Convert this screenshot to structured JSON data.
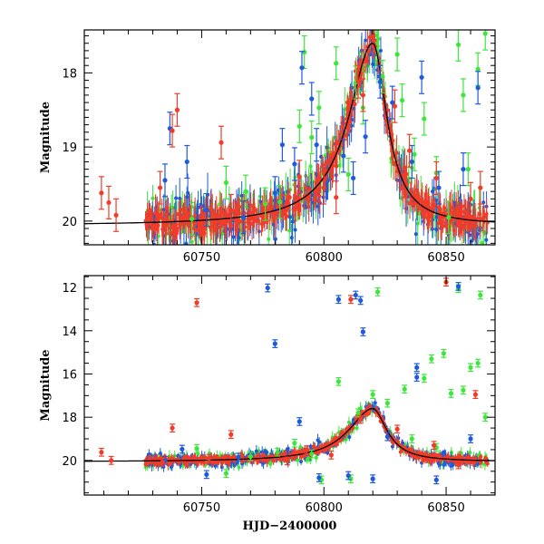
{
  "chart_data": [
    {
      "type": "scatter",
      "title": "",
      "xlabel": "",
      "ylabel": "Magnitude",
      "xlim": [
        60702,
        60870
      ],
      "ylim": [
        20.32,
        17.42
      ],
      "y_inverted": true,
      "x_ticks": [
        60750,
        60800,
        60850
      ],
      "y_ticks": [
        18,
        19,
        20
      ],
      "grid": false,
      "model_curve": {
        "color": "#000000",
        "peak_x": 60820,
        "peak_y": 17.6,
        "baseline_y": 20.06,
        "rise_width": 12,
        "decay_width": 7
      },
      "series": [
        {
          "color": "#f03c28",
          "points": [
            [
              60709,
              19.62
            ],
            [
              60712,
              19.75
            ],
            [
              60715,
              19.92
            ],
            [
              60733,
              19.55
            ],
            [
              60738,
              18.78
            ],
            [
              60740,
              18.5
            ],
            [
              60758,
              18.94
            ],
            [
              60762,
              19.86
            ],
            [
              60790,
              19.4
            ],
            [
              60800,
              19.55
            ],
            [
              60805,
              19.68
            ],
            [
              60814,
              18.12
            ],
            [
              60816,
              18.3
            ],
            [
              60829,
              18.45
            ],
            [
              60835,
              19.05
            ],
            [
              60846,
              19.42
            ],
            [
              60860,
              19.7
            ],
            [
              60864,
              19.55
            ]
          ]
        },
        {
          "color": "#1e5adc",
          "points": [
            [
              60735,
              19.45
            ],
            [
              60737,
              18.75
            ],
            [
              60744,
              19.2
            ],
            [
              60752,
              19.85
            ],
            [
              60767,
              19.95
            ],
            [
              60780,
              19.62
            ],
            [
              60783,
              18.97
            ],
            [
              60788,
              19.23
            ],
            [
              60791,
              17.93
            ],
            [
              60795,
              18.35
            ],
            [
              60797,
              18.97
            ],
            [
              60808,
              19.12
            ],
            [
              60812,
              19.42
            ],
            [
              60817,
              18.86
            ],
            [
              60823,
              18.12
            ],
            [
              60828,
              18.4
            ],
            [
              60836,
              19.2
            ],
            [
              60840,
              18.06
            ],
            [
              60847,
              19.55
            ],
            [
              60857,
              19.3
            ],
            [
              60863,
              18.2
            ]
          ]
        },
        {
          "color": "#3ce63c",
          "points": [
            [
              60746,
              19.97
            ],
            [
              60760,
              19.48
            ],
            [
              60768,
              19.6
            ],
            [
              60776,
              19.77
            ],
            [
              60782,
              19.74
            ],
            [
              60790,
              18.72
            ],
            [
              60792,
              17.72
            ],
            [
              60795,
              18.87
            ],
            [
              60798,
              18.47
            ],
            [
              60805,
              17.87
            ],
            [
              60810,
              19.37
            ],
            [
              60813,
              18.13
            ],
            [
              60816,
              18.47
            ],
            [
              60824,
              18.05
            ],
            [
              60830,
              17.75
            ],
            [
              60832,
              18.37
            ],
            [
              60837,
              19.1
            ],
            [
              60841,
              18.62
            ],
            [
              60846,
              19.35
            ],
            [
              60851,
              19.95
            ],
            [
              60855,
              17.62
            ],
            [
              60857,
              18.3
            ],
            [
              60859,
              19.3
            ],
            [
              60863,
              17.95
            ],
            [
              60866,
              17.47
            ]
          ]
        }
      ]
    },
    {
      "type": "scatter",
      "title": "",
      "xlabel": "HJD−2400000",
      "ylabel": "Magnitude",
      "xlim": [
        60702,
        60870
      ],
      "ylim": [
        21.6,
        11.45
      ],
      "y_inverted": true,
      "x_ticks": [
        60750,
        60800,
        60850
      ],
      "y_ticks": [
        12,
        14,
        16,
        18,
        20
      ],
      "grid": false,
      "model_curve": {
        "color": "#000000",
        "peak_x": 60820,
        "peak_y": 17.6,
        "baseline_y": 20.06,
        "rise_width": 12,
        "decay_width": 7
      },
      "series": [
        {
          "color": "#f03c28",
          "points": [
            [
              60709,
              19.62
            ],
            [
              60713,
              20.0
            ],
            [
              60734,
              20.08
            ],
            [
              60738,
              18.5
            ],
            [
              60748,
              12.7
            ],
            [
              60753,
              19.9
            ],
            [
              60762,
              18.8
            ],
            [
              60785,
              20.02
            ],
            [
              60793,
              19.5
            ],
            [
              60803,
              19.75
            ],
            [
              60811,
              12.55
            ],
            [
              60815,
              18.1
            ],
            [
              60830,
              18.55
            ],
            [
              60845,
              19.3
            ],
            [
              60850,
              11.75
            ],
            [
              60855,
              20.2
            ],
            [
              60862,
              16.95
            ]
          ]
        },
        {
          "color": "#1e5adc",
          "points": [
            [
              60735,
              20.0
            ],
            [
              60742,
              19.48
            ],
            [
              60752,
              20.65
            ],
            [
              60765,
              19.85
            ],
            [
              60777,
              12.02
            ],
            [
              60780,
              14.6
            ],
            [
              60790,
              18.2
            ],
            [
              60798,
              20.8
            ],
            [
              60806,
              12.55
            ],
            [
              60810,
              20.7
            ],
            [
              60813,
              12.35
            ],
            [
              60815,
              12.6
            ],
            [
              60816,
              14.05
            ],
            [
              60820,
              20.85
            ],
            [
              60826,
              18.9
            ],
            [
              60838,
              15.7
            ],
            [
              60838,
              16.15
            ],
            [
              60846,
              20.9
            ],
            [
              60855,
              11.95
            ],
            [
              60860,
              19.0
            ]
          ]
        },
        {
          "color": "#3ce63c",
          "points": [
            [
              60748,
              19.45
            ],
            [
              60760,
              20.6
            ],
            [
              60770,
              19.82
            ],
            [
              60781,
              19.62
            ],
            [
              60788,
              19.2
            ],
            [
              60795,
              19.7
            ],
            [
              60799,
              20.9
            ],
            [
              60806,
              16.35
            ],
            [
              60811,
              20.85
            ],
            [
              60814,
              17.8
            ],
            [
              60820,
              16.95
            ],
            [
              60822,
              12.2
            ],
            [
              60826,
              17.35
            ],
            [
              60833,
              16.7
            ],
            [
              60836,
              19.0
            ],
            [
              60841,
              16.2
            ],
            [
              60844,
              15.3
            ],
            [
              60846,
              19.4
            ],
            [
              60849,
              15.05
            ],
            [
              60852,
              16.9
            ],
            [
              60855,
              12.05
            ],
            [
              60857,
              16.75
            ],
            [
              60860,
              15.7
            ],
            [
              60863,
              15.5
            ],
            [
              60864,
              12.35
            ],
            [
              60866,
              18.0
            ]
          ]
        }
      ]
    }
  ]
}
